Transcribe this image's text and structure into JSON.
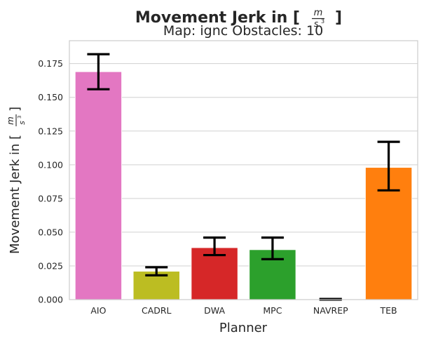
{
  "chart_data": {
    "type": "bar",
    "title_main": "Movement Jerk in [",
    "title_unit": {
      "numerator": "m",
      "denominator": "s",
      "exponent": "3"
    },
    "title_close": "]",
    "subtitle": "Map: ignc Obstacles: 10",
    "xlabel": "Planner",
    "ylabel_main": "Movement Jerk in [",
    "ylabel_close": "]",
    "ylim": [
      0,
      0.192
    ],
    "yticks": [
      0.0,
      0.025,
      0.05,
      0.075,
      0.1,
      0.125,
      0.15,
      0.175
    ],
    "ytick_labels": [
      "0.000",
      "0.025",
      "0.050",
      "0.075",
      "0.100",
      "0.125",
      "0.150",
      "0.175"
    ],
    "grid": true,
    "categories": [
      "AIO",
      "CADRL",
      "DWA",
      "MPC",
      "NAVREP",
      "TEB"
    ],
    "values": [
      0.169,
      0.021,
      0.0385,
      0.037,
      0.0,
      0.098
    ],
    "error_low": [
      0.156,
      0.018,
      0.033,
      0.03,
      0.0,
      0.081
    ],
    "error_high": [
      0.182,
      0.024,
      0.046,
      0.046,
      0.0005,
      0.117
    ],
    "colors": [
      "#e377c2",
      "#bcbd22",
      "#d62728",
      "#2ca02c",
      "#9467bd",
      "#ff7f0e"
    ]
  }
}
